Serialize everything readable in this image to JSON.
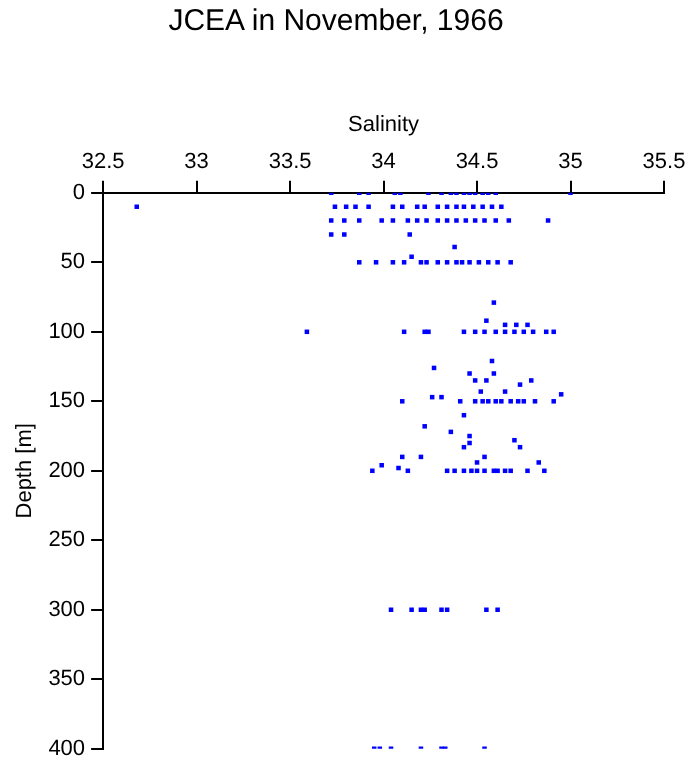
{
  "chart_data": {
    "type": "scatter",
    "title": "JCEA in November, 1966",
    "xlabel": "Salinity",
    "ylabel": "Depth [m]",
    "xlim": [
      32.5,
      35.5
    ],
    "xticks": [
      32.5,
      33,
      33.5,
      34,
      34.5,
      35,
      35.5
    ],
    "ylim": [
      400,
      0
    ],
    "yticks": [
      0,
      50,
      100,
      150,
      200,
      250,
      300,
      350,
      400
    ],
    "marker": "square",
    "grid": false,
    "series": [
      {
        "color": "#0000ff",
        "x": [
          33.72,
          33.87,
          33.92,
          34.06,
          34.09,
          34.24,
          34.31,
          34.36,
          34.39,
          34.43,
          34.46,
          34.49,
          34.53,
          34.56,
          34.6,
          35.0,
          32.68,
          33.74,
          33.8,
          33.85,
          33.92,
          34.05,
          34.1,
          34.18,
          34.22,
          34.29,
          34.34,
          34.39,
          34.43,
          34.48,
          34.53,
          34.58,
          34.63,
          33.72,
          33.79,
          33.87,
          33.99,
          34.05,
          34.13,
          34.18,
          34.23,
          34.29,
          34.34,
          34.39,
          34.44,
          34.49,
          34.54,
          34.6,
          34.67,
          34.88,
          33.72,
          33.79,
          34.14,
          34.38,
          34.15,
          33.87,
          33.96,
          34.05,
          34.11,
          34.2,
          34.23,
          34.29,
          34.34,
          34.39,
          34.42,
          34.46,
          34.51,
          34.56,
          34.61,
          34.68,
          34.59,
          34.55,
          34.65,
          34.71,
          34.77,
          33.59,
          34.11,
          34.22,
          34.24,
          34.43,
          34.49,
          34.54,
          34.6,
          34.65,
          34.7,
          34.75,
          34.8,
          34.87,
          34.91,
          34.58,
          34.27,
          34.46,
          34.59,
          34.49,
          34.55,
          34.79,
          34.73,
          34.52,
          34.65,
          34.95,
          34.26,
          34.31,
          34.1,
          34.41,
          34.49,
          34.53,
          34.56,
          34.6,
          34.63,
          34.68,
          34.72,
          34.75,
          34.81,
          34.91,
          34.43,
          34.22,
          34.36,
          34.46,
          34.7,
          34.46,
          34.43,
          34.73,
          34.1,
          34.2,
          34.54,
          34.5,
          34.83,
          33.99,
          34.08,
          33.94,
          34.13,
          34.34,
          34.38,
          34.43,
          34.47,
          34.5,
          34.54,
          34.59,
          34.61,
          34.65,
          34.68,
          34.77,
          34.86,
          34.04,
          34.15,
          34.2,
          34.22,
          34.31,
          34.34,
          34.55,
          34.61,
          33.95,
          33.98,
          34.04,
          34.2,
          34.31,
          34.33,
          34.54
        ],
        "values": [
          0,
          0,
          0,
          0,
          0,
          0,
          0,
          0,
          0,
          0,
          0,
          0,
          0,
          0,
          0,
          0,
          10,
          10,
          10,
          10,
          10,
          10,
          10,
          10,
          10,
          10,
          10,
          10,
          10,
          10,
          10,
          10,
          10,
          20,
          20,
          20,
          20,
          20,
          20,
          20,
          20,
          20,
          20,
          20,
          20,
          20,
          20,
          20,
          20,
          20,
          30,
          30,
          30,
          39,
          46,
          50,
          50,
          50,
          50,
          50,
          50,
          50,
          50,
          50,
          50,
          50,
          50,
          50,
          50,
          50,
          79,
          92,
          95,
          95,
          95,
          100,
          100,
          100,
          100,
          100,
          100,
          100,
          100,
          100,
          100,
          100,
          100,
          100,
          100,
          121,
          126,
          130,
          130,
          135,
          135,
          135,
          138,
          143,
          143,
          145,
          147,
          147,
          150,
          150,
          150,
          150,
          150,
          150,
          150,
          150,
          150,
          150,
          150,
          150,
          160,
          168,
          172,
          175,
          178,
          180,
          183,
          183,
          190,
          190,
          190,
          194,
          194,
          196,
          198,
          200,
          200,
          200,
          200,
          200,
          200,
          200,
          200,
          200,
          200,
          200,
          200,
          200,
          200,
          300,
          300,
          300,
          300,
          300,
          300,
          300,
          300,
          400,
          400,
          400,
          400,
          400,
          400,
          400
        ]
      }
    ]
  }
}
